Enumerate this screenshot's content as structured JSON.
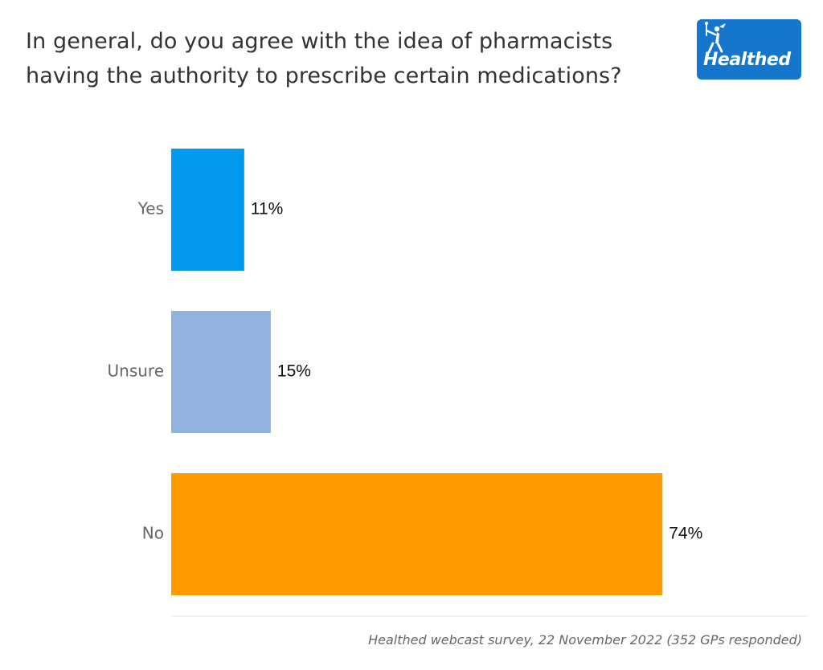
{
  "title_lines": [
    "In general, do you agree with the idea of pharmacists",
    "having the authority to prescribe certain medications?"
  ],
  "logo": {
    "text": "Healthed",
    "icon": "hermes-figure-icon",
    "color": "#1476cc"
  },
  "source": "Healthed webcast survey, 22 November 2022 (352 GPs responded)",
  "chart_data": {
    "type": "bar",
    "orientation": "horizontal",
    "categories": [
      "Yes",
      "Unsure",
      "No"
    ],
    "values": [
      11,
      15,
      74
    ],
    "value_labels": [
      "11%",
      "15%",
      "74%"
    ],
    "colors": [
      "#0099ee",
      "#92b1de",
      "#ff9900"
    ],
    "xlim": [
      0,
      84
    ],
    "grid": false,
    "legend": "none"
  }
}
